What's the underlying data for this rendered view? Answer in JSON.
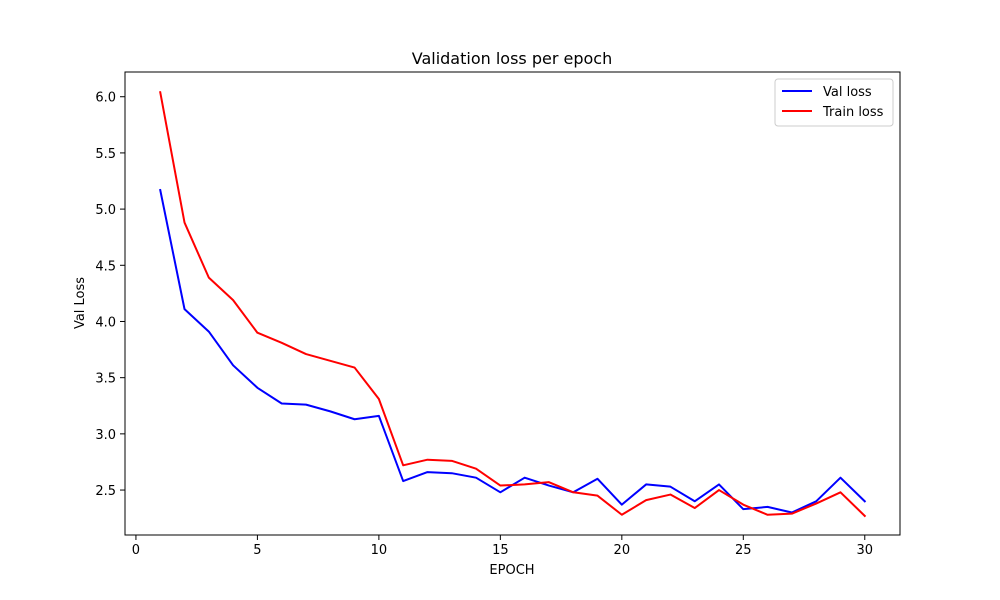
{
  "chart_data": {
    "type": "line",
    "title": "Validation loss per epoch",
    "xlabel": "EPOCH",
    "ylabel": "Val Loss",
    "xlim": [
      -0.45,
      31.45
    ],
    "ylim": [
      2.1,
      6.22
    ],
    "xticks": [
      0,
      5,
      10,
      15,
      20,
      25,
      30
    ],
    "yticks": [
      2.5,
      3.0,
      3.5,
      4.0,
      4.5,
      5.0,
      5.5,
      6.0
    ],
    "ytick_labels": [
      "2.5",
      "3.0",
      "3.5",
      "4.0",
      "4.5",
      "5.0",
      "5.5",
      "6.0"
    ],
    "grid": false,
    "legend_position": "top-right",
    "x": [
      1,
      2,
      3,
      4,
      5,
      6,
      7,
      8,
      9,
      10,
      11,
      12,
      13,
      14,
      15,
      16,
      17,
      18,
      19,
      20,
      21,
      22,
      23,
      24,
      25,
      26,
      27,
      28,
      29,
      30
    ],
    "series": [
      {
        "name": "Val loss",
        "color": "#0000ff",
        "values": [
          5.17,
          4.11,
          3.91,
          3.61,
          3.41,
          3.27,
          3.26,
          3.2,
          3.13,
          3.16,
          2.58,
          2.66,
          2.65,
          2.61,
          2.48,
          2.61,
          2.54,
          2.48,
          2.6,
          2.37,
          2.55,
          2.53,
          2.4,
          2.55,
          2.33,
          2.35,
          2.3,
          2.4,
          2.61,
          2.4
        ]
      },
      {
        "name": "Train loss",
        "color": "#ff0000",
        "values": [
          6.04,
          4.88,
          4.39,
          4.19,
          3.9,
          3.81,
          3.71,
          3.65,
          3.59,
          3.31,
          2.72,
          2.77,
          2.76,
          2.69,
          2.54,
          2.55,
          2.57,
          2.48,
          2.45,
          2.28,
          2.41,
          2.46,
          2.34,
          2.5,
          2.37,
          2.28,
          2.29,
          2.38,
          2.48,
          2.27
        ]
      }
    ]
  }
}
